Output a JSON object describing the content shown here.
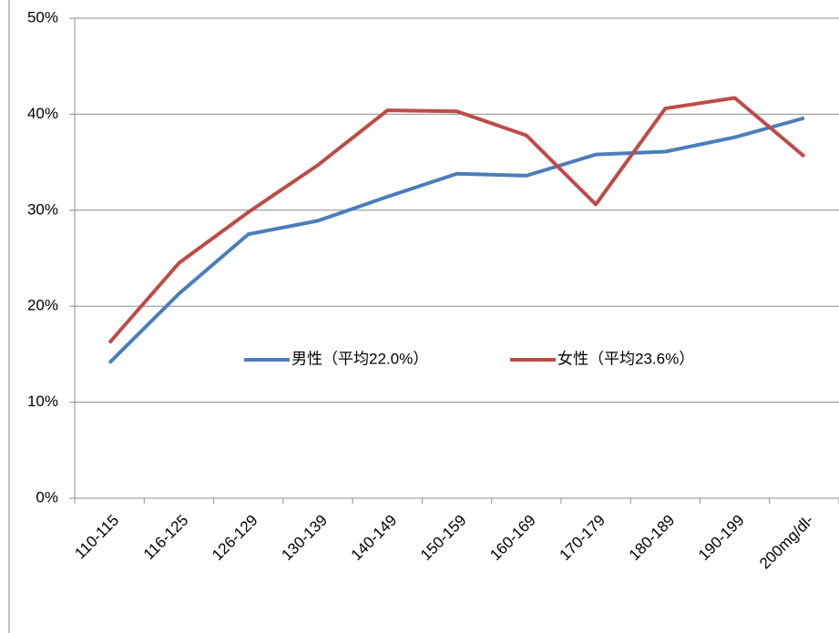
{
  "chart_data": {
    "type": "line",
    "categories": [
      "110-115",
      "116-125",
      "126-129",
      "130-139",
      "140-149",
      "150-159",
      "160-169",
      "170-179",
      "180-189",
      "190-199",
      "200mg/dl-"
    ],
    "series": [
      {
        "name": "男性（平均22.0%）",
        "color": "#4a7ebb",
        "values": [
          14.1,
          21.3,
          27.5,
          28.9,
          31.4,
          33.8,
          33.6,
          35.8,
          36.1,
          37.6,
          39.6
        ]
      },
      {
        "name": "女性（平均23.6%）",
        "color": "#be4b48",
        "values": [
          16.2,
          24.5,
          29.8,
          34.7,
          40.4,
          40.3,
          37.8,
          30.6,
          40.6,
          41.7,
          35.6
        ]
      }
    ],
    "ylim": [
      0,
      50
    ],
    "yticks": [
      {
        "value": 0,
        "label": "0%"
      },
      {
        "value": 10,
        "label": "10%"
      },
      {
        "value": 20,
        "label": "20%"
      },
      {
        "value": 30,
        "label": "30%"
      },
      {
        "value": 40,
        "label": "40%"
      },
      {
        "value": 50,
        "label": "50%"
      }
    ],
    "grid": true
  }
}
